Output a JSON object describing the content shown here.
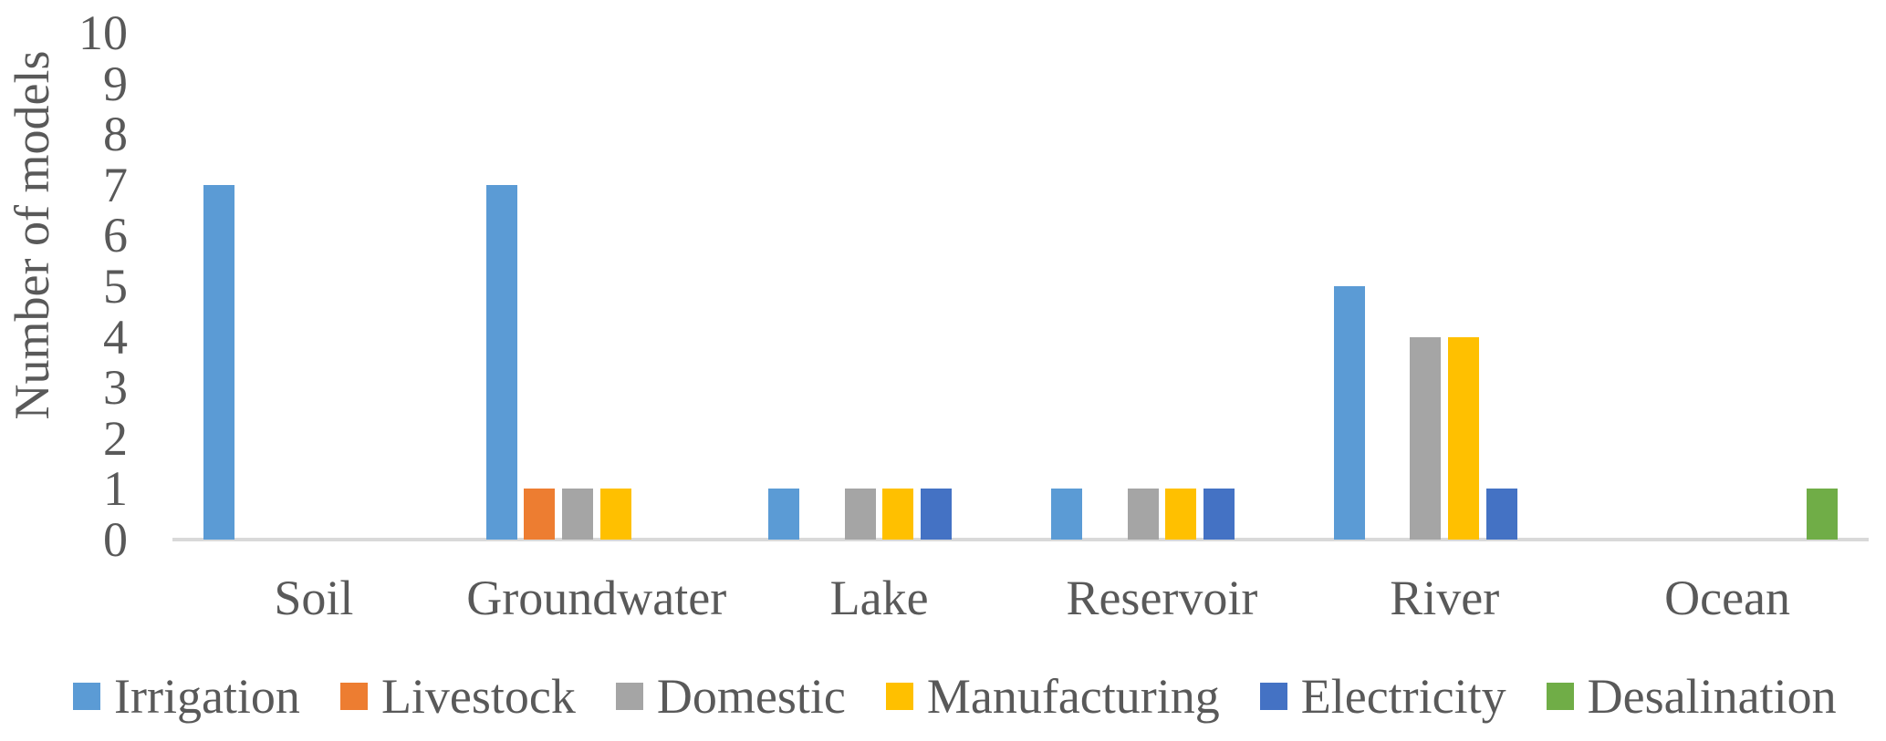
{
  "chart_data": {
    "type": "bar",
    "title": "",
    "xlabel": "",
    "ylabel": "Number of models",
    "categories": [
      "Soil",
      "Groundwater",
      "Lake",
      "Reservoir",
      "River",
      "Ocean"
    ],
    "series": [
      {
        "name": "Irrigation",
        "color": "#5B9BD5",
        "values": [
          7,
          7,
          1,
          1,
          5,
          0
        ]
      },
      {
        "name": "Livestock",
        "color": "#ED7D31",
        "values": [
          0,
          1,
          0,
          0,
          0,
          0
        ]
      },
      {
        "name": "Domestic",
        "color": "#A5A5A5",
        "values": [
          0,
          1,
          1,
          1,
          4,
          0
        ]
      },
      {
        "name": "Manufacturing",
        "color": "#FFC000",
        "values": [
          0,
          1,
          1,
          1,
          4,
          0
        ]
      },
      {
        "name": "Electricity",
        "color": "#4472C4",
        "values": [
          0,
          0,
          1,
          1,
          1,
          0
        ]
      },
      {
        "name": "Desalination",
        "color": "#70AD47",
        "values": [
          0,
          0,
          0,
          0,
          0,
          1
        ]
      }
    ],
    "y_axis": {
      "min": 0,
      "max": 10,
      "step": 1,
      "ticks": [
        0,
        1,
        2,
        3,
        4,
        5,
        6,
        7,
        8,
        9,
        10
      ]
    },
    "ylim": [
      0,
      10
    ],
    "grid": false,
    "legend_position": "bottom",
    "text_color": "#595959",
    "axis_line_color": "#D9D9D9"
  }
}
